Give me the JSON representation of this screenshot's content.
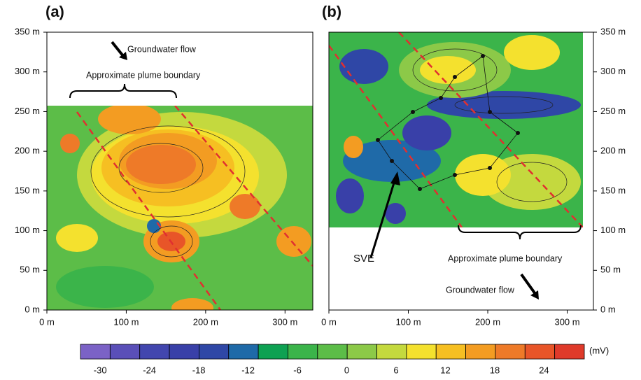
{
  "chart_data": [
    {
      "type": "contour",
      "title": "(a)",
      "xlim": [
        0,
        335
      ],
      "ylim": [
        0,
        350
      ],
      "xticks": [
        {
          "value": 0,
          "label": "0 m"
        },
        {
          "value": 100,
          "label": "100 m"
        },
        {
          "value": 200,
          "label": "200 m"
        },
        {
          "value": 300,
          "label": "300 m"
        }
      ],
      "yticks": [
        {
          "value": 0,
          "label": "0 m"
        },
        {
          "value": 50,
          "label": "50 m"
        },
        {
          "value": 100,
          "label": "100 m"
        },
        {
          "value": 150,
          "label": "150 m"
        },
        {
          "value": 200,
          "label": "200 m"
        },
        {
          "value": 250,
          "label": "250 m"
        },
        {
          "value": 300,
          "label": "300 m"
        },
        {
          "value": 350,
          "label": "350 m"
        }
      ],
      "annotations": [
        "Groundwater flow",
        "Approximate plume boundary"
      ]
    },
    {
      "type": "contour",
      "title": "(b)",
      "xlim": [
        0,
        333
      ],
      "ylim": [
        0,
        350
      ],
      "xticks": [
        {
          "value": 0,
          "label": "0 m"
        },
        {
          "value": 100,
          "label": "100 m"
        },
        {
          "value": 200,
          "label": "200 m"
        },
        {
          "value": 300,
          "label": "300 m"
        }
      ],
      "yticks": [
        {
          "value": 0,
          "label": "0 m"
        },
        {
          "value": 50,
          "label": "50 m"
        },
        {
          "value": 100,
          "label": "100 m"
        },
        {
          "value": 150,
          "label": "150 m"
        },
        {
          "value": 200,
          "label": "200 m"
        },
        {
          "value": 250,
          "label": "250 m"
        },
        {
          "value": 300,
          "label": "300 m"
        },
        {
          "value": 350,
          "label": "350 m"
        }
      ],
      "annotations": [
        "SVE",
        "Approximate plume boundary",
        "Groundwater flow"
      ]
    }
  ],
  "colorbar": {
    "unit": "(mV)",
    "lim": [
      -32.4,
      28.9
    ],
    "ticks": [
      -30,
      -24,
      -18,
      -12,
      -6,
      0,
      6,
      12,
      18,
      24
    ],
    "colors": [
      "#7b62c6",
      "#5a4fb8",
      "#4246ae",
      "#3940a8",
      "#2f47a6",
      "#1f6aa8",
      "#0ea152",
      "#3bb44a",
      "#5cbd48",
      "#8cc948",
      "#c4d93e",
      "#f4e12e",
      "#f6bf22",
      "#f39c22",
      "#ee7a28",
      "#e85528",
      "#df3a2a"
    ]
  }
}
